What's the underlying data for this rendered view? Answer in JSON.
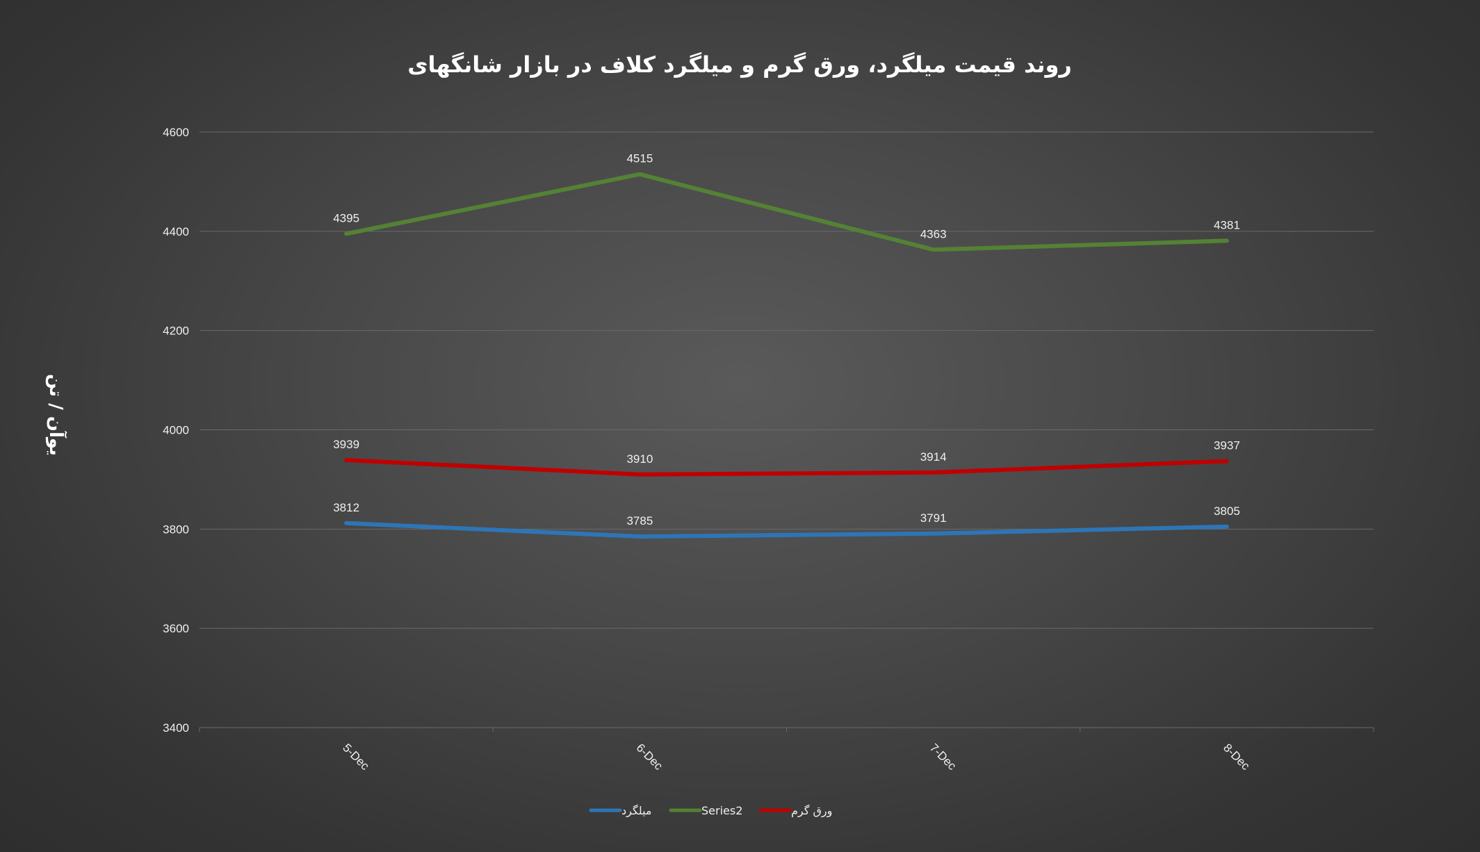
{
  "chart_data": {
    "type": "line",
    "title": "روند قیمت میلگرد، ورق گرم و میلگرد کلاف در بازار شانگهای",
    "xlabel": "",
    "ylabel": "یوآن / تن",
    "categories": [
      "5-Dec",
      "6-Dec",
      "7-Dec",
      "8-Dec"
    ],
    "ylim": [
      3400,
      4600
    ],
    "yticks": [
      3400,
      3600,
      3800,
      4000,
      4200,
      4400,
      4600
    ],
    "grid": true,
    "legend_position": "bottom",
    "series": [
      {
        "name": "میلگرد",
        "color": "#2e75b6",
        "values": [
          3812,
          3785,
          3791,
          3805
        ]
      },
      {
        "name": "Series2",
        "color": "#548235",
        "values": [
          4395,
          4515,
          4363,
          4381
        ]
      },
      {
        "name": "ورق گرم",
        "color": "#c00000",
        "values": [
          3939,
          3910,
          3914,
          3937
        ]
      }
    ]
  }
}
